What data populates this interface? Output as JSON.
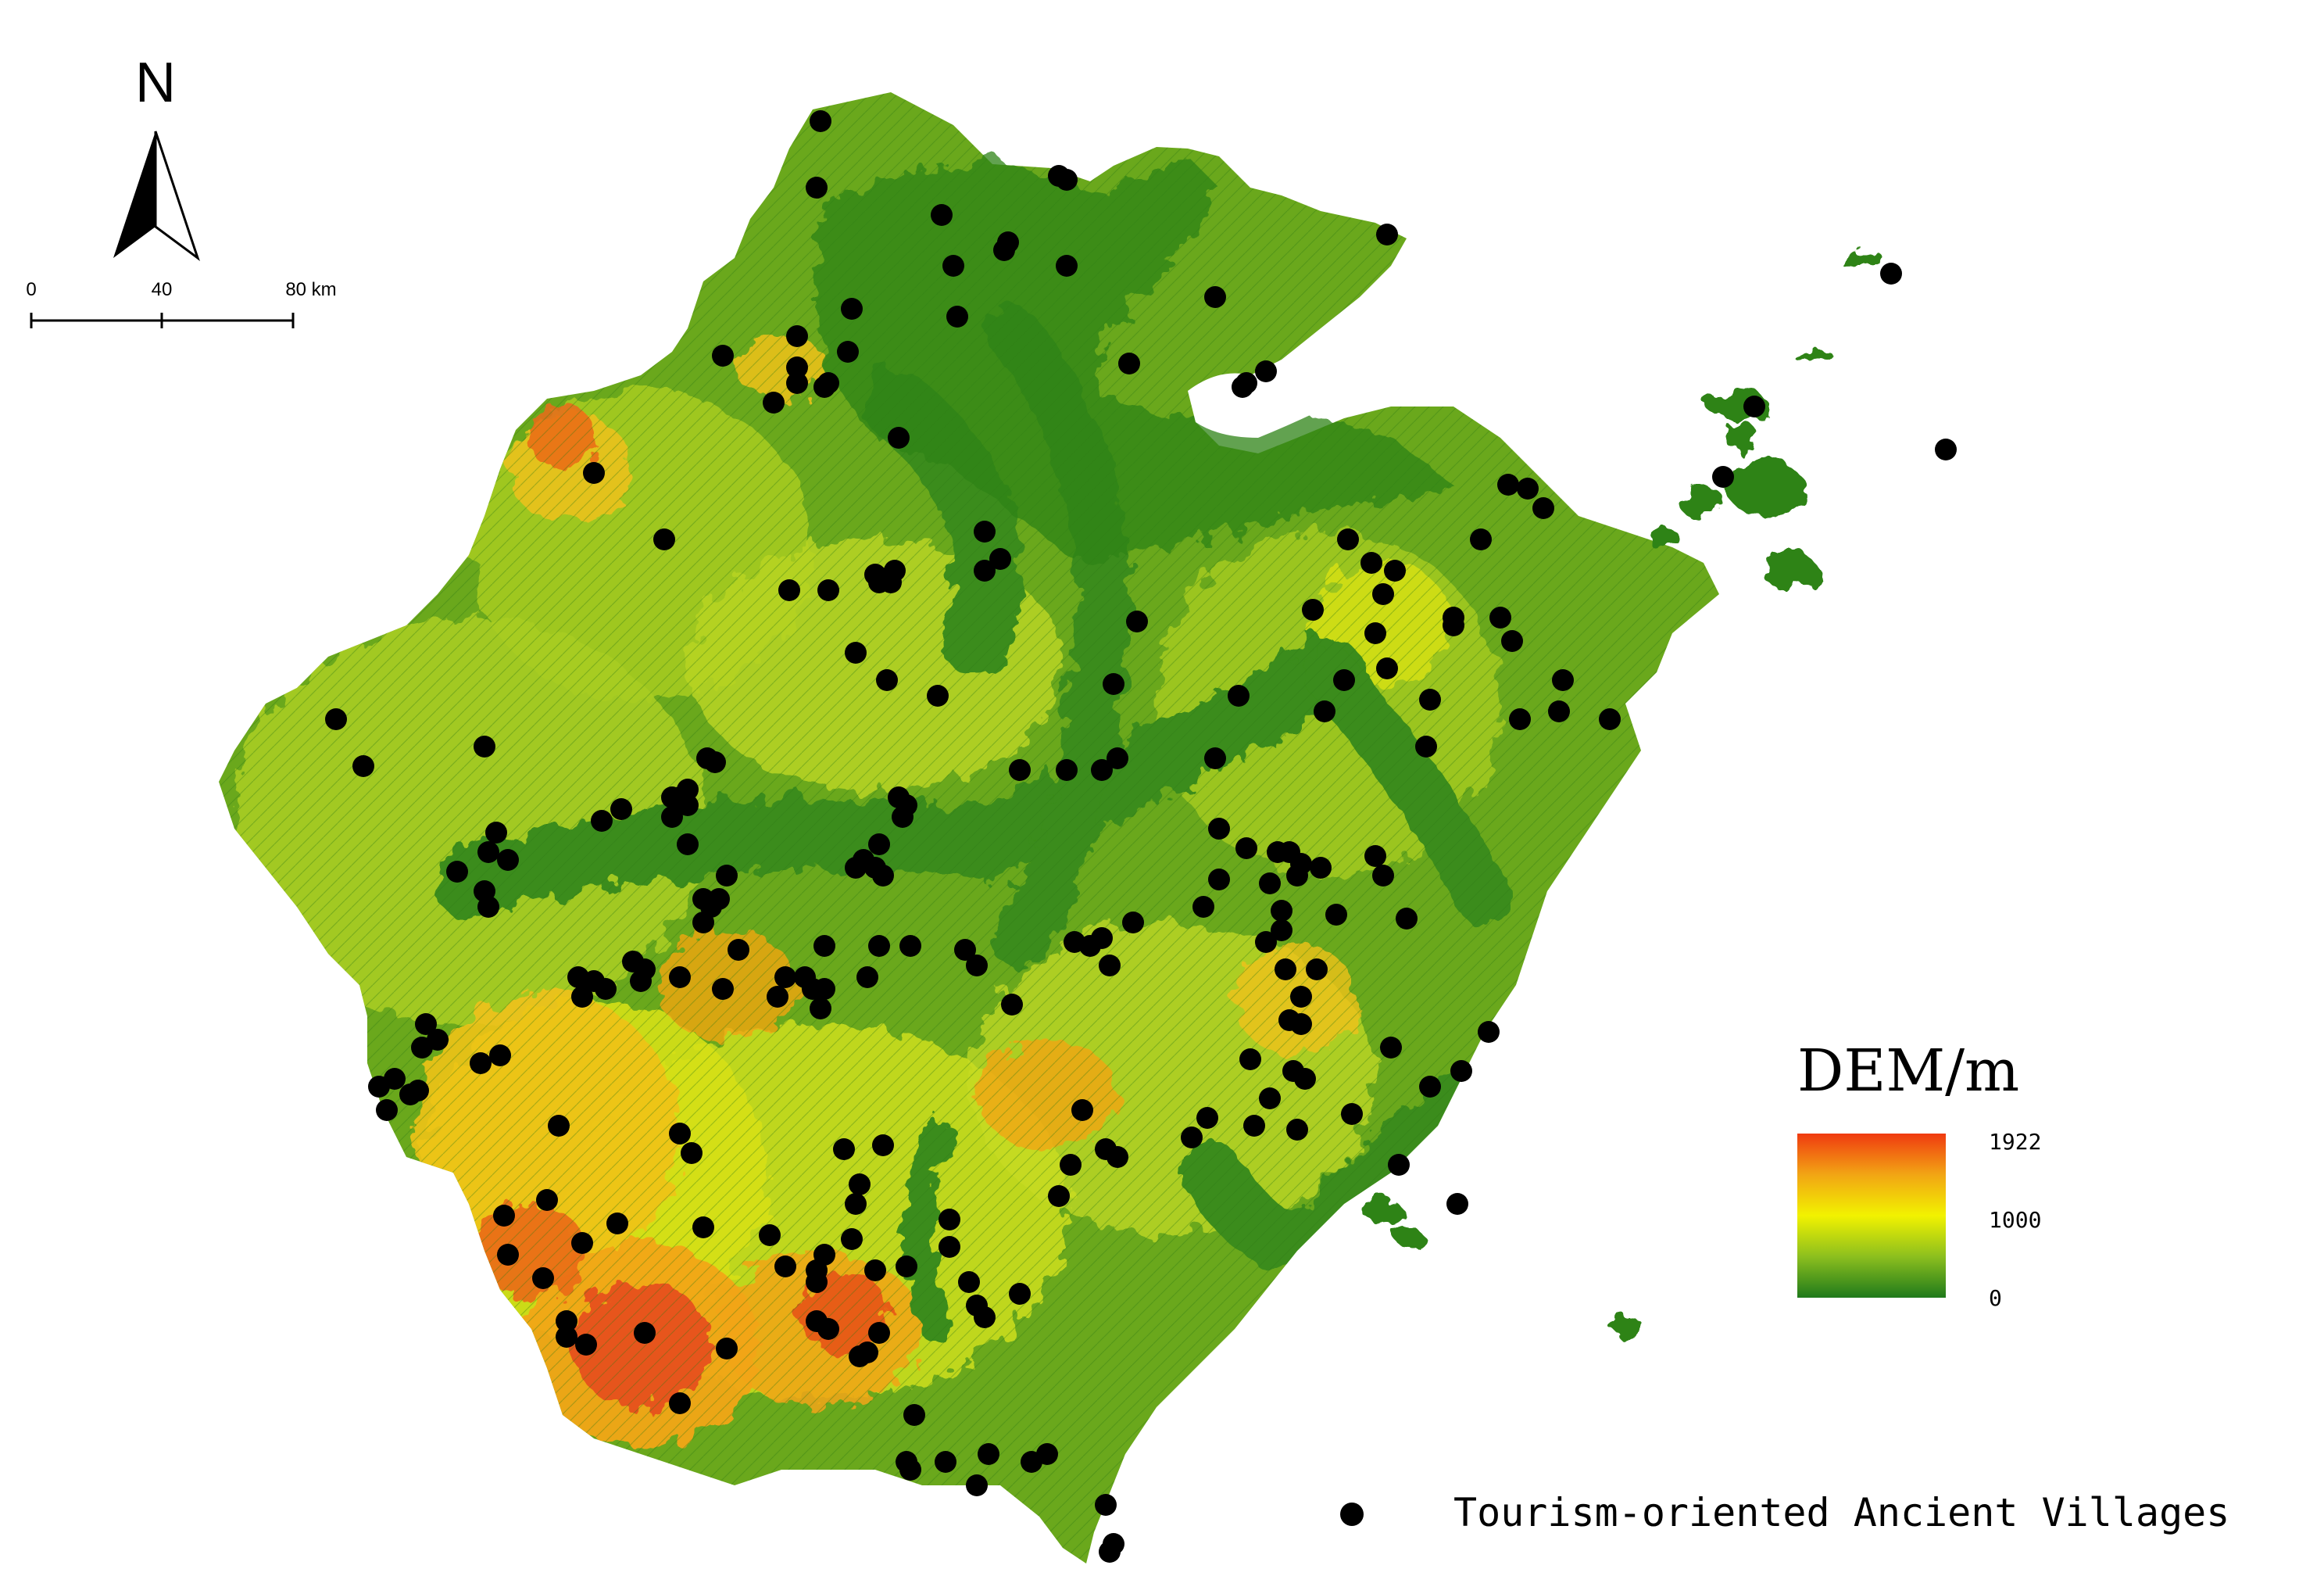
{
  "north_arrow": {
    "label": "N"
  },
  "scale_bar": {
    "ticks": [
      "0",
      "40",
      "80 km"
    ]
  },
  "legend": {
    "title": "DEM/m",
    "values": [
      "1922",
      "1000",
      "0"
    ],
    "colors": {
      "low": "#1f7a1b",
      "mid": "#f2f200",
      "high": "#f03a10"
    },
    "point_label": "Tourism-oriented Ancient Villages"
  },
  "colors": {
    "lowland": "#3a8c1a",
    "hill": "#8fc21f",
    "upland": "#d9e210",
    "mountain": "#f2a514",
    "peak": "#e2401a",
    "village_dot": "#000000"
  }
}
